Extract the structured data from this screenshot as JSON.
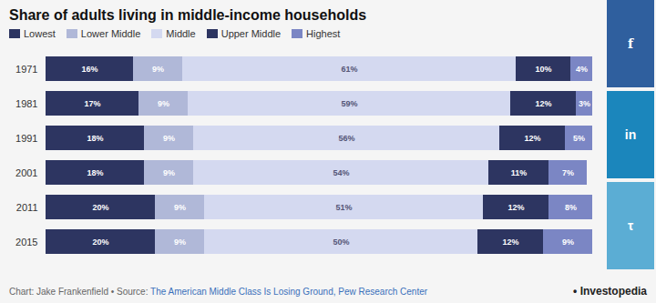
{
  "chart_data": {
    "type": "bar",
    "orientation": "horizontal",
    "stacked": true,
    "data_labels": true,
    "tick_labels": "y",
    "legend": "top-left",
    "title": "Share of adults living in middle-income households",
    "categories": [
      "1971",
      "1981",
      "1991",
      "2001",
      "2011",
      "2015"
    ],
    "xlim": [
      0,
      100
    ],
    "series": [
      {
        "name": "Lowest",
        "color": "#2d3561",
        "values": [
          16,
          17,
          18,
          18,
          20,
          20
        ],
        "value_labels": [
          "16%",
          "17%",
          "18%",
          "18%",
          "20%",
          "20%"
        ]
      },
      {
        "name": "Lower Middle",
        "color": "#b0b8d8",
        "values": [
          9,
          9,
          9,
          9,
          9,
          9
        ],
        "value_labels": [
          "9%",
          "9%",
          "9%",
          "9%",
          "9%",
          "9%"
        ]
      },
      {
        "name": "Middle",
        "color": "#d4d9f0",
        "values": [
          61,
          59,
          56,
          54,
          51,
          50
        ],
        "value_labels": [
          "61%",
          "59%",
          "56%",
          "54%",
          "51%",
          "50%"
        ]
      },
      {
        "name": "Upper Middle",
        "color": "#2d3561",
        "values": [
          10,
          12,
          12,
          11,
          12,
          12
        ],
        "value_labels": [
          "10%",
          "12%",
          "12%",
          "11%",
          "12%",
          "12%"
        ]
      },
      {
        "name": "Highest",
        "color": "#7b86c4",
        "values": [
          4,
          3,
          5,
          7,
          8,
          9
        ],
        "value_labels": [
          "4%",
          "3%",
          "5%",
          "7%",
          "8%",
          "9%"
        ]
      }
    ],
    "annotations": [
      {
        "text": "Chart: Jake Frankenfield • Source: "
      },
      {
        "text": "The American Middle Class Is Losing Ground, Pew Research Center",
        "color": "#3a70bb"
      },
      {
        "text": "• Investopedia"
      },
      {
        "text": "f",
        "color": "#2f5f9e"
      },
      {
        "text": "in",
        "color": "#1b86bc"
      },
      {
        "text": "τ",
        "color": "#5badd4"
      }
    ]
  }
}
